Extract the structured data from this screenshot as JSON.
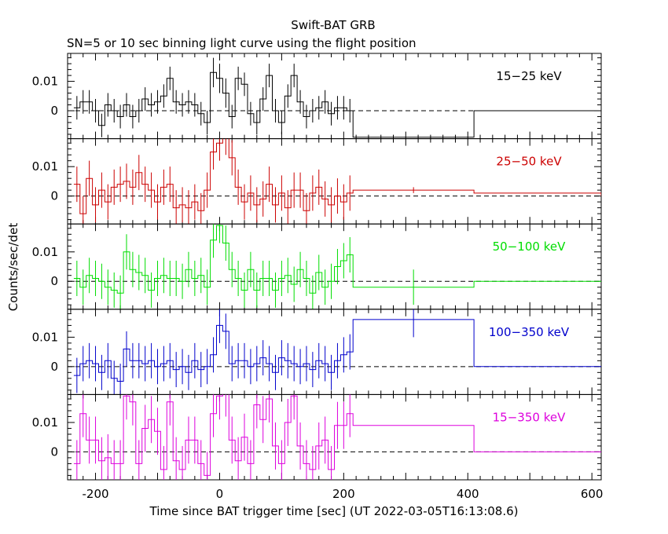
{
  "chart_data": {
    "type": "line",
    "title": "Swift-BAT GRB",
    "subtitle": "SN=5 or 10 sec binning light curve using the flight position",
    "xlabel": "Time since BAT trigger time [sec] (UT 2022-03-05T16:13:08.6)",
    "ylabel": "Counts/sec/det",
    "xlim": [
      -245,
      615
    ],
    "ylim": [
      -0.0095,
      0.0195
    ],
    "x_ticks": [
      "-200",
      "0",
      "200",
      "400",
      "600"
    ],
    "y_ticks": [
      "0",
      "0.01"
    ],
    "grid": false,
    "panels": [
      {
        "name": "15−25 keV",
        "color": "#000000",
        "bin_edges": [
          -235,
          -225,
          -215,
          -205,
          -195,
          -185,
          -175,
          -165,
          -155,
          -145,
          -135,
          -125,
          -115,
          -105,
          -95,
          -85,
          -75,
          -65,
          -55,
          -45,
          -35,
          -25,
          -15,
          -5,
          5,
          15,
          25,
          35,
          45,
          55,
          65,
          75,
          85,
          95,
          105,
          115,
          125,
          135,
          145,
          155,
          165,
          175,
          185,
          195,
          205,
          215,
          410,
          615
        ],
        "values": [
          0.001,
          0.003,
          0.003,
          0.0,
          -0.005,
          0.002,
          0.0,
          -0.002,
          0.002,
          -0.002,
          0.0,
          0.004,
          0.002,
          0.003,
          0.005,
          0.011,
          0.003,
          0.002,
          0.003,
          0.002,
          -0.001,
          -0.004,
          0.013,
          0.011,
          0.006,
          -0.002,
          0.011,
          0.009,
          -0.001,
          -0.004,
          0.004,
          0.012,
          0.0,
          -0.004,
          0.005,
          0.012,
          0.003,
          -0.002,
          0.0,
          0.001,
          0.003,
          -0.001,
          0.001,
          0.001,
          0.0,
          -0.009,
          0.0,
          0.0
        ],
        "errors": [
          0.004,
          0.004,
          0.004,
          0.004,
          0.004,
          0.004,
          0.004,
          0.004,
          0.004,
          0.004,
          0.004,
          0.004,
          0.004,
          0.004,
          0.004,
          0.004,
          0.004,
          0.004,
          0.004,
          0.004,
          0.004,
          0.004,
          0.005,
          0.005,
          0.005,
          0.004,
          0.004,
          0.004,
          0.004,
          0.004,
          0.004,
          0.004,
          0.004,
          0.004,
          0.004,
          0.004,
          0.004,
          0.004,
          0.004,
          0.004,
          0.004,
          0.004,
          0.004,
          0.004,
          0.004,
          0.0,
          0.0,
          0.0
        ]
      },
      {
        "name": "25−50 keV",
        "color": "#cc0000",
        "bin_edges": [
          -235,
          -225,
          -215,
          -205,
          -195,
          -185,
          -175,
          -165,
          -155,
          -145,
          -135,
          -125,
          -115,
          -105,
          -95,
          -85,
          -75,
          -65,
          -55,
          -45,
          -35,
          -25,
          -15,
          -5,
          5,
          15,
          25,
          35,
          45,
          55,
          65,
          75,
          85,
          95,
          105,
          115,
          125,
          135,
          145,
          155,
          165,
          175,
          185,
          195,
          205,
          215,
          410,
          615
        ],
        "values": [
          0.004,
          -0.006,
          0.006,
          -0.003,
          0.002,
          -0.002,
          0.003,
          0.004,
          0.005,
          0.003,
          0.008,
          0.004,
          0.002,
          -0.002,
          0.003,
          0.004,
          -0.004,
          -0.003,
          -0.004,
          -0.002,
          -0.005,
          0.002,
          0.015,
          0.018,
          0.02,
          0.013,
          0.003,
          -0.002,
          0.001,
          -0.003,
          -0.001,
          0.004,
          -0.003,
          0.001,
          -0.004,
          0.002,
          0.002,
          -0.005,
          0.001,
          0.003,
          -0.001,
          -0.003,
          0.0,
          -0.002,
          0.001,
          0.002,
          0.001,
          0.0
        ],
        "errors": [
          0.006,
          0.006,
          0.006,
          0.006,
          0.006,
          0.006,
          0.006,
          0.006,
          0.006,
          0.006,
          0.006,
          0.006,
          0.006,
          0.006,
          0.006,
          0.006,
          0.006,
          0.006,
          0.006,
          0.006,
          0.006,
          0.006,
          0.006,
          0.006,
          0.006,
          0.006,
          0.006,
          0.006,
          0.006,
          0.006,
          0.006,
          0.006,
          0.006,
          0.006,
          0.006,
          0.006,
          0.006,
          0.006,
          0.006,
          0.006,
          0.006,
          0.006,
          0.006,
          0.006,
          0.006,
          0.001,
          0.0,
          0.0
        ]
      },
      {
        "name": "50−100 keV",
        "color": "#00dd00",
        "bin_edges": [
          -235,
          -225,
          -215,
          -205,
          -195,
          -185,
          -175,
          -165,
          -155,
          -145,
          -135,
          -125,
          -115,
          -105,
          -95,
          -85,
          -75,
          -65,
          -55,
          -45,
          -35,
          -25,
          -15,
          -5,
          5,
          15,
          25,
          35,
          45,
          55,
          65,
          75,
          85,
          95,
          105,
          115,
          125,
          135,
          145,
          155,
          165,
          175,
          185,
          195,
          205,
          215,
          410,
          615
        ],
        "values": [
          0.001,
          -0.002,
          0.002,
          0.001,
          0.0,
          -0.002,
          -0.003,
          -0.004,
          0.01,
          0.004,
          0.003,
          0.002,
          -0.003,
          0.001,
          0.002,
          0.001,
          0.001,
          0.0,
          0.004,
          0.001,
          0.002,
          -0.002,
          0.014,
          0.019,
          0.013,
          0.004,
          0.001,
          -0.003,
          0.004,
          -0.003,
          0.001,
          0.001,
          -0.003,
          0.001,
          0.002,
          -0.001,
          0.004,
          0.001,
          -0.004,
          0.003,
          -0.002,
          0.0,
          0.005,
          0.007,
          0.009,
          -0.002,
          0.0,
          0.0
        ],
        "errors": [
          0.006,
          0.006,
          0.006,
          0.006,
          0.006,
          0.006,
          0.006,
          0.006,
          0.006,
          0.006,
          0.006,
          0.006,
          0.006,
          0.006,
          0.006,
          0.006,
          0.006,
          0.006,
          0.006,
          0.006,
          0.006,
          0.006,
          0.006,
          0.006,
          0.006,
          0.006,
          0.006,
          0.006,
          0.006,
          0.006,
          0.006,
          0.006,
          0.006,
          0.006,
          0.006,
          0.006,
          0.006,
          0.006,
          0.006,
          0.006,
          0.006,
          0.006,
          0.006,
          0.006,
          0.006,
          0.006,
          0.0,
          0.0
        ]
      },
      {
        "name": "100−350 keV",
        "color": "#0000cc",
        "bin_edges": [
          -235,
          -225,
          -215,
          -205,
          -195,
          -185,
          -175,
          -165,
          -155,
          -145,
          -135,
          -125,
          -115,
          -105,
          -95,
          -85,
          -75,
          -65,
          -55,
          -45,
          -35,
          -25,
          -15,
          -5,
          5,
          15,
          25,
          35,
          45,
          55,
          65,
          75,
          85,
          95,
          105,
          115,
          125,
          135,
          145,
          155,
          165,
          175,
          185,
          195,
          205,
          215,
          410,
          615
        ],
        "values": [
          -0.003,
          0.001,
          0.002,
          0.001,
          -0.002,
          0.002,
          -0.004,
          -0.005,
          0.006,
          0.002,
          0.002,
          0.001,
          0.002,
          0.0,
          0.001,
          0.002,
          -0.001,
          0.0,
          -0.002,
          0.002,
          -0.001,
          0.0,
          0.004,
          0.014,
          0.012,
          0.001,
          0.002,
          0.002,
          0.0,
          0.001,
          0.003,
          0.001,
          -0.002,
          0.003,
          0.002,
          0.001,
          0.0,
          0.001,
          -0.001,
          0.002,
          0.001,
          -0.002,
          0.002,
          0.004,
          0.005,
          0.016,
          0.0,
          0.0
        ],
        "errors": [
          0.006,
          0.006,
          0.006,
          0.006,
          0.006,
          0.006,
          0.006,
          0.006,
          0.006,
          0.006,
          0.006,
          0.006,
          0.006,
          0.006,
          0.006,
          0.006,
          0.006,
          0.006,
          0.006,
          0.006,
          0.006,
          0.006,
          0.006,
          0.006,
          0.006,
          0.006,
          0.006,
          0.006,
          0.006,
          0.006,
          0.006,
          0.006,
          0.006,
          0.006,
          0.006,
          0.006,
          0.006,
          0.006,
          0.006,
          0.006,
          0.006,
          0.006,
          0.006,
          0.006,
          0.006,
          0.006,
          0.0,
          0.0
        ]
      },
      {
        "name": "15−350 keV",
        "color": "#dd00dd",
        "bin_edges": [
          -235,
          -225,
          -215,
          -205,
          -195,
          -185,
          -175,
          -165,
          -155,
          -145,
          -135,
          -125,
          -115,
          -105,
          -95,
          -85,
          -75,
          -65,
          -55,
          -45,
          -35,
          -25,
          -15,
          -5,
          5,
          15,
          25,
          35,
          45,
          55,
          65,
          75,
          85,
          95,
          105,
          115,
          125,
          135,
          145,
          155,
          165,
          175,
          185,
          195,
          205,
          215,
          410,
          615
        ],
        "values": [
          -0.004,
          0.013,
          0.004,
          0.004,
          -0.003,
          -0.002,
          -0.004,
          -0.004,
          0.019,
          0.017,
          -0.004,
          0.008,
          0.011,
          0.007,
          -0.006,
          0.017,
          -0.003,
          -0.006,
          0.004,
          0.004,
          -0.004,
          -0.008,
          0.013,
          0.019,
          0.02,
          0.004,
          -0.003,
          0.005,
          -0.004,
          0.016,
          0.011,
          0.018,
          0.002,
          -0.004,
          0.01,
          0.019,
          0.002,
          -0.004,
          -0.006,
          0.002,
          0.004,
          -0.006,
          0.009,
          0.009,
          0.013,
          0.009,
          0.0,
          0.0
        ],
        "errors": [
          0.008,
          0.008,
          0.008,
          0.008,
          0.008,
          0.008,
          0.008,
          0.008,
          0.008,
          0.008,
          0.008,
          0.008,
          0.008,
          0.008,
          0.008,
          0.008,
          0.008,
          0.008,
          0.008,
          0.008,
          0.008,
          0.008,
          0.008,
          0.008,
          0.008,
          0.008,
          0.008,
          0.008,
          0.008,
          0.008,
          0.008,
          0.008,
          0.008,
          0.008,
          0.008,
          0.008,
          0.008,
          0.008,
          0.008,
          0.008,
          0.008,
          0.008,
          0.008,
          0.008,
          0.008,
          0.0,
          0.0,
          0.0
        ]
      }
    ]
  }
}
